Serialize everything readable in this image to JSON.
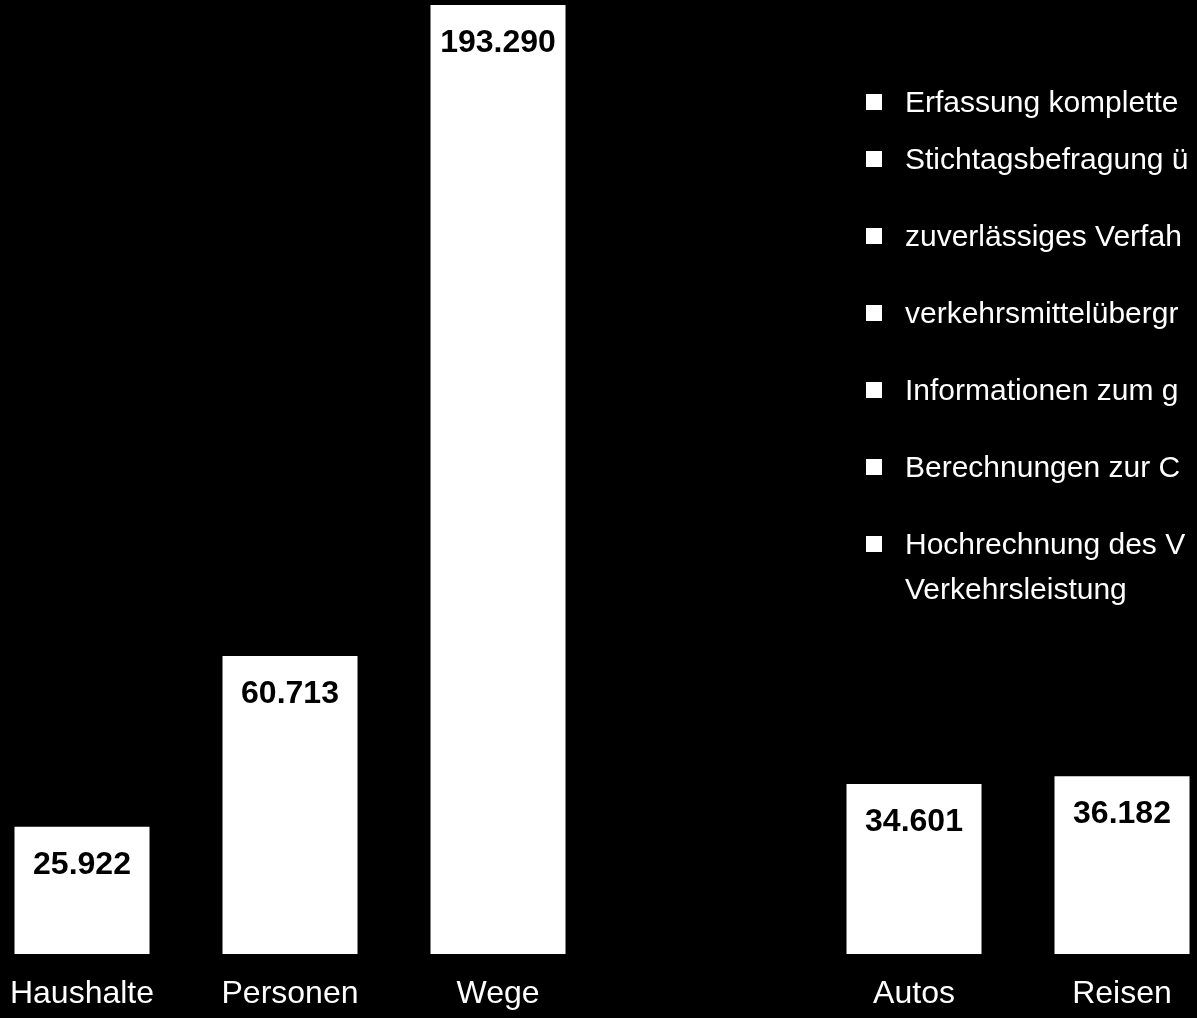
{
  "chart_data": {
    "type": "bar",
    "categories": [
      "Haushalte",
      "Personen",
      "Wege",
      null,
      "Autos",
      "Reisen"
    ],
    "values": [
      25922,
      60713,
      193290,
      null,
      34601,
      36182
    ],
    "value_labels": [
      "25.922",
      "60.713",
      "193.290",
      null,
      "34.601",
      "36.182"
    ],
    "color": "#ffffff",
    "tick_labels": "x",
    "annotations": [
      "Erfassung komplette",
      "Stichtagsbefragung ü",
      "zuverlässiges Verfah",
      "verkehrsmittelübergr",
      "Informationen zum g",
      "Berechnungen zur C",
      "Hochrechnung des V Verkehrsleistung"
    ]
  }
}
